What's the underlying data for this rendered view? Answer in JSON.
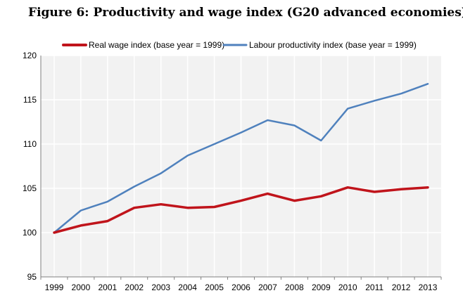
{
  "chart_data": {
    "type": "line",
    "title": "Figure 6:  Productivity and wage index (G20 advanced economies)",
    "x": [
      "1999",
      "2000",
      "2001",
      "2002",
      "2003",
      "2004",
      "2005",
      "2006",
      "2007",
      "2008",
      "2009",
      "2010",
      "2011",
      "2012",
      "2013"
    ],
    "ylim": [
      95,
      120
    ],
    "yticks": [
      95,
      100,
      105,
      110,
      115,
      120
    ],
    "grid": true,
    "legend_position": "top",
    "series": [
      {
        "name": "Real wage index (base year = 1999)",
        "color": "#c0141b",
        "values": [
          100.0,
          100.8,
          101.3,
          102.8,
          103.2,
          102.8,
          102.9,
          103.6,
          104.4,
          103.6,
          104.1,
          105.1,
          104.6,
          104.9,
          105.1
        ]
      },
      {
        "name": "Labour productivity index (base year = 1999)",
        "color": "#4f81bd",
        "values": [
          100.0,
          102.5,
          103.5,
          105.2,
          106.7,
          108.7,
          110.0,
          111.3,
          112.7,
          112.1,
          110.4,
          114.0,
          114.9,
          115.7,
          116.8
        ]
      }
    ]
  },
  "colors": {
    "plot_background": "#f2f2f2",
    "grid": "#ffffff",
    "axis": "#808080"
  }
}
